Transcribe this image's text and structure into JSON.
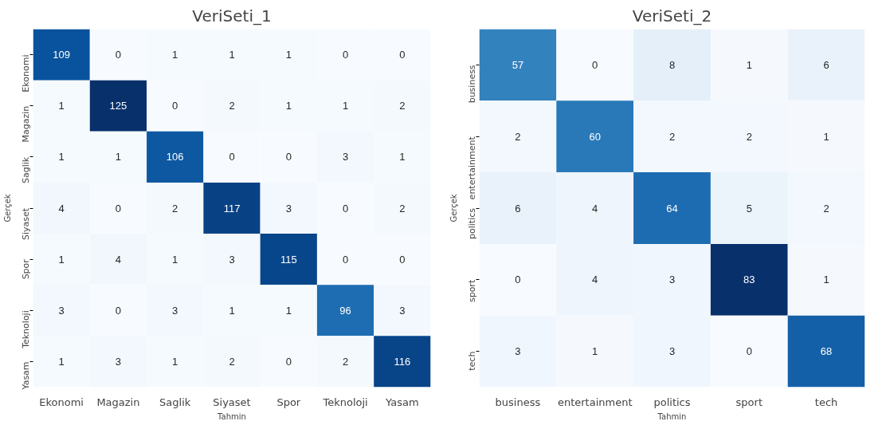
{
  "chart_data": [
    {
      "type": "heatmap",
      "title": "VeriSeti_1",
      "xlabel": "Tahmin",
      "ylabel": "Gerçek",
      "categories": [
        "Ekonomi",
        "Magazin",
        "Saglik",
        "Siyaset",
        "Spor",
        "Teknoloji",
        "Yasam"
      ],
      "y_categories": [
        "Ekonomi",
        "Magazin",
        "Saglik",
        "Siyaset",
        "Spor",
        "Teknoloji",
        "Yasam"
      ],
      "cells": [
        [
          109,
          0,
          1,
          1,
          1,
          0,
          0
        ],
        [
          1,
          125,
          0,
          2,
          1,
          1,
          2
        ],
        [
          1,
          1,
          106,
          0,
          0,
          3,
          1
        ],
        [
          4,
          0,
          2,
          117,
          3,
          0,
          2
        ],
        [
          1,
          4,
          1,
          3,
          115,
          0,
          0
        ],
        [
          3,
          0,
          3,
          1,
          1,
          96,
          3
        ],
        [
          1,
          3,
          1,
          2,
          0,
          2,
          116
        ]
      ],
      "data_labels": true
    },
    {
      "type": "heatmap",
      "title": "VeriSeti_2",
      "xlabel": "Tahmin",
      "ylabel": "Gerçek",
      "categories": [
        "business",
        "entertainment",
        "politics",
        "sport",
        "tech"
      ],
      "y_categories": [
        "business",
        "entertainment",
        "politics",
        "sport",
        "tech"
      ],
      "cells": [
        [
          57,
          0,
          8,
          1,
          6
        ],
        [
          2,
          60,
          2,
          2,
          1
        ],
        [
          6,
          4,
          64,
          5,
          2
        ],
        [
          0,
          4,
          3,
          83,
          1
        ],
        [
          3,
          1,
          3,
          0,
          68
        ]
      ],
      "data_labels": true
    }
  ]
}
